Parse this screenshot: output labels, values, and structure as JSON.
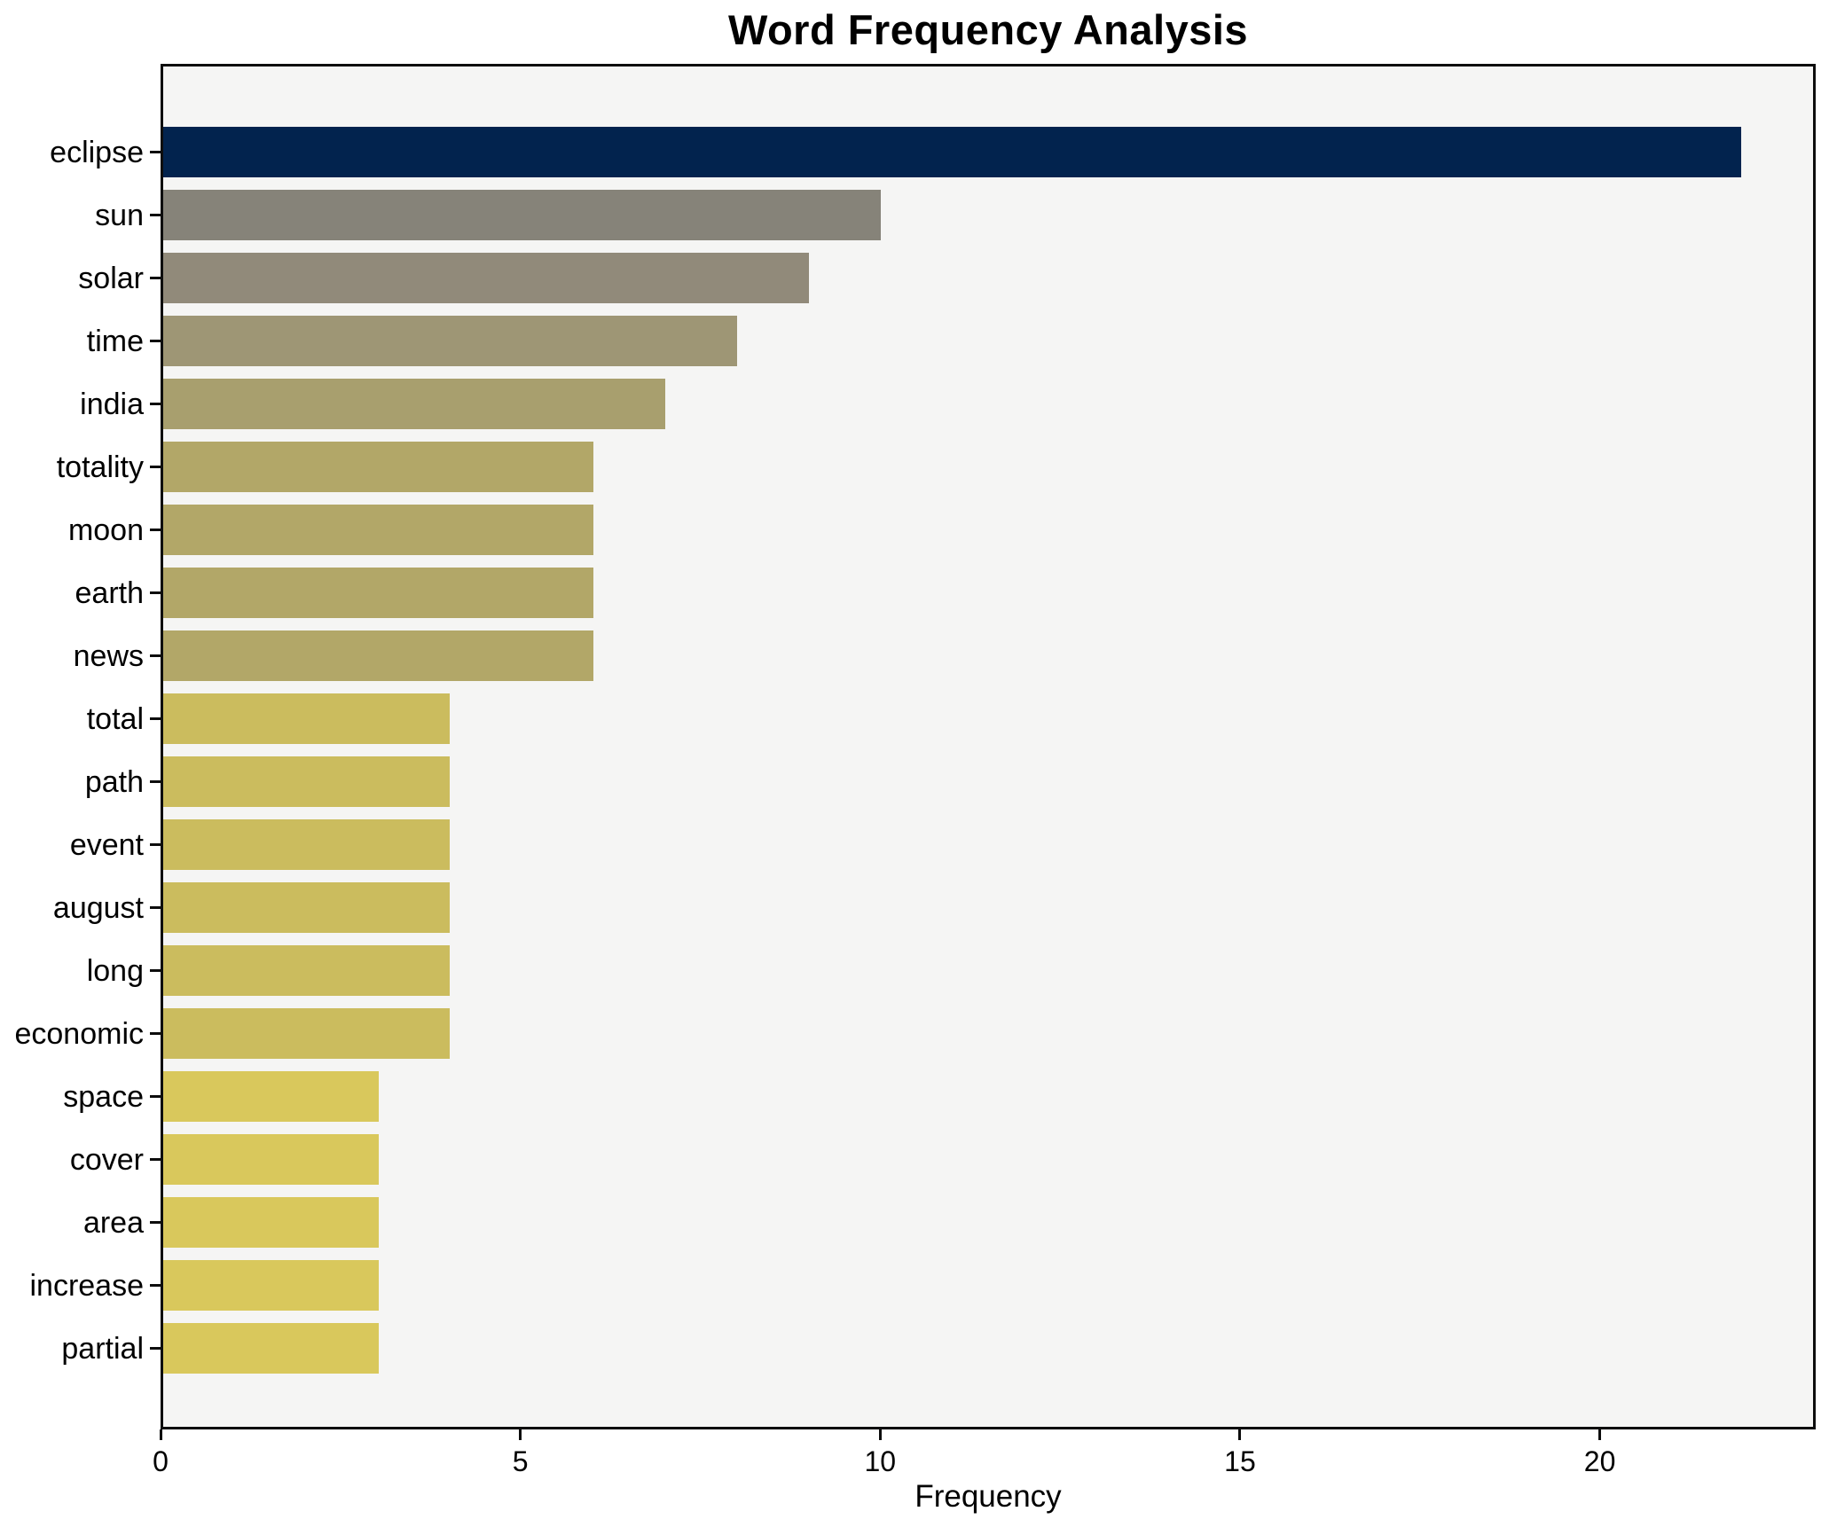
{
  "title": "Word Frequency Analysis",
  "chart_data": {
    "type": "bar",
    "orientation": "horizontal",
    "title": "Word Frequency Analysis",
    "xlabel": "Frequency",
    "ylabel": "",
    "categories": [
      "eclipse",
      "sun",
      "solar",
      "time",
      "india",
      "totality",
      "moon",
      "earth",
      "news",
      "total",
      "path",
      "event",
      "august",
      "long",
      "economic",
      "space",
      "cover",
      "area",
      "increase",
      "partial"
    ],
    "values": [
      22,
      10,
      9,
      8,
      7,
      6,
      6,
      6,
      6,
      4,
      4,
      4,
      4,
      4,
      4,
      3,
      3,
      3,
      3,
      3
    ],
    "bar_colors": [
      "#02234e",
      "#868379",
      "#918a7a",
      "#9e9675",
      "#a89f6e",
      "#b2a768",
      "#b2a768",
      "#b2a768",
      "#b2a768",
      "#cbbc5e",
      "#cbbc5e",
      "#cbbc5e",
      "#cbbc5e",
      "#cbbc5e",
      "#cbbc5e",
      "#d9c85c",
      "#d9c85c",
      "#d9c85c",
      "#d9c85c",
      "#d9c85c"
    ],
    "xlim": [
      0,
      23
    ],
    "x_ticks": [
      0,
      5,
      10,
      15,
      20
    ],
    "grid": false,
    "legend_position": "none",
    "plot_background": "#f5f5f4",
    "frame_color": "#0d0d0d"
  }
}
